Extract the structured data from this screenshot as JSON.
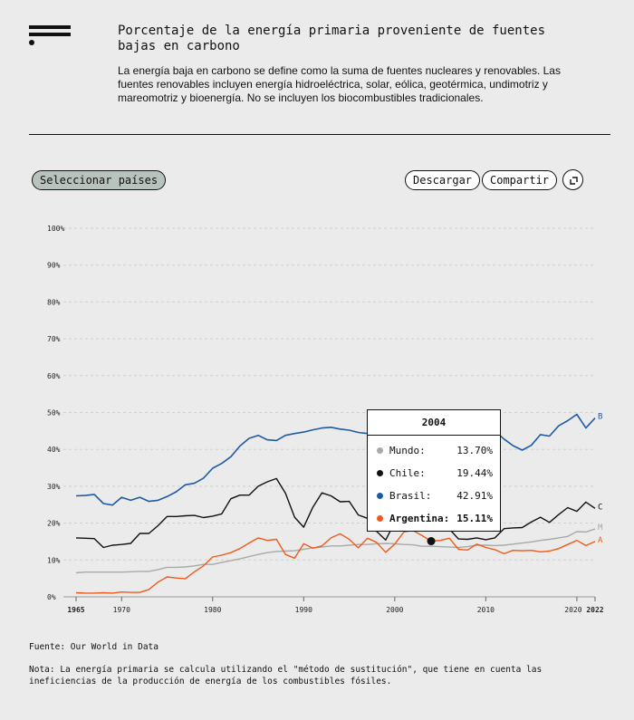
{
  "header": {
    "title": "Porcentaje de la energía primaria proveniente de fuentes bajas en carbono",
    "subtitle": "La energía baja en carbono se define como la suma de fuentes nucleares y renovables. Las fuentes renovables incluyen energía hidroeléctrica, solar, eólica, geotérmica, undimotriz y mareomotriz y bioenergía. No se incluyen los biocombustibles tradicionales."
  },
  "toolbar": {
    "select_label": "Seleccionar países",
    "download_label": "Descargar",
    "share_label": "Compartir",
    "expand_icon": "expand-icon"
  },
  "tooltip": {
    "year": "2004",
    "rows": [
      {
        "name": "Mundo:",
        "value": "13.70%",
        "color": "#a6aba8"
      },
      {
        "name": "Chile:",
        "value": "19.44%",
        "color": "#111111"
      },
      {
        "name": "Brasil:",
        "value": "42.91%",
        "color": "#1f5aa6"
      },
      {
        "name": "Argentina:",
        "value": "15.11%",
        "color": "#f05a1a"
      }
    ]
  },
  "footer": {
    "source": "Fuente: Our World in Data",
    "note": "Nota: La energía primaria se calcula utilizando el \"método de sustitución\", que tiene en cuenta las ineficiencias de la producción de energía de los combustibles fósiles."
  },
  "chart_data": {
    "type": "line",
    "title": "Porcentaje de la energía primaria proveniente de fuentes bajas en carbono",
    "xlim": [
      1965,
      2022
    ],
    "ylim": [
      0,
      100
    ],
    "x_ticks": [
      1965,
      1970,
      1980,
      1990,
      2000,
      2010,
      2020,
      2022
    ],
    "y_ticks": [
      "0%",
      "10%",
      "20%",
      "30%",
      "40%",
      "50%",
      "60%",
      "70%",
      "80%",
      "90%",
      "100%"
    ],
    "grid": true,
    "highlight_year": 2004,
    "x": [
      1965,
      1966,
      1967,
      1968,
      1969,
      1970,
      1971,
      1972,
      1973,
      1974,
      1975,
      1976,
      1977,
      1978,
      1979,
      1980,
      1981,
      1982,
      1983,
      1984,
      1985,
      1986,
      1987,
      1988,
      1989,
      1990,
      1991,
      1992,
      1993,
      1994,
      1995,
      1996,
      1997,
      1998,
      1999,
      2000,
      2001,
      2002,
      2003,
      2004,
      2005,
      2006,
      2007,
      2008,
      2009,
      2010,
      2011,
      2012,
      2013,
      2014,
      2015,
      2016,
      2017,
      2018,
      2019,
      2020,
      2021,
      2022
    ],
    "series": [
      {
        "name": "Mundo",
        "end_label": "M",
        "color": "#a6aba8",
        "width": 1.4,
        "values": [
          6.5,
          6.7,
          6.7,
          6.7,
          6.7,
          6.7,
          6.8,
          6.9,
          6.9,
          7.4,
          8.0,
          8.0,
          8.1,
          8.4,
          8.8,
          8.8,
          9.3,
          9.8,
          10.3,
          10.9,
          11.5,
          12.0,
          12.3,
          12.4,
          12.5,
          12.9,
          13.3,
          13.5,
          13.8,
          13.8,
          14.0,
          14.2,
          14.2,
          14.4,
          14.5,
          14.4,
          14.2,
          14.1,
          13.7,
          13.7,
          13.6,
          13.5,
          13.4,
          13.6,
          14.0,
          14.0,
          13.9,
          14.0,
          14.3,
          14.6,
          14.9,
          15.3,
          15.6,
          16.0,
          16.4,
          17.7,
          17.6,
          18.4
        ]
      },
      {
        "name": "Chile",
        "end_label": "C",
        "color": "#111111",
        "width": 1.4,
        "values": [
          16.0,
          15.9,
          15.8,
          13.4,
          14.0,
          14.2,
          14.5,
          17.2,
          17.2,
          19.3,
          21.8,
          21.8,
          22.0,
          22.1,
          21.5,
          21.9,
          22.5,
          26.6,
          27.6,
          27.6,
          30.0,
          31.2,
          32.1,
          28.1,
          21.6,
          18.9,
          24.3,
          28.2,
          27.4,
          25.8,
          25.9,
          22.2,
          21.3,
          17.8,
          15.4,
          20.2,
          23.5,
          22.4,
          20.2,
          19.4,
          19.0,
          18.4,
          15.7,
          15.6,
          16.0,
          15.5,
          16.0,
          18.5,
          18.7,
          18.8,
          20.3,
          21.6,
          20.2,
          22.3,
          24.2,
          23.2,
          25.7,
          24.0
        ]
      },
      {
        "name": "Brasil",
        "end_label": "B",
        "color": "#1f5aa6",
        "width": 1.6,
        "values": [
          27.4,
          27.5,
          27.8,
          25.3,
          24.9,
          27.0,
          26.2,
          27.0,
          25.9,
          26.2,
          27.2,
          28.5,
          30.4,
          30.8,
          32.2,
          34.9,
          36.2,
          38.0,
          40.9,
          43.0,
          43.8,
          42.6,
          42.4,
          43.8,
          44.3,
          44.7,
          45.3,
          45.8,
          46.0,
          45.5,
          45.2,
          44.6,
          44.3,
          44.0,
          43.6,
          43.2,
          42.8,
          42.9,
          43.6,
          42.9,
          43.0,
          43.3,
          44.0,
          44.1,
          45.5,
          44.5,
          45.0,
          42.8,
          41.0,
          39.8,
          41.1,
          44.0,
          43.6,
          46.4,
          47.8,
          49.5,
          45.8,
          48.5
        ]
      },
      {
        "name": "Argentina",
        "end_label": "A",
        "color": "#f05a1a",
        "width": 1.4,
        "values": [
          1.1,
          1.0,
          1.0,
          1.1,
          1.0,
          1.3,
          1.2,
          1.2,
          2.0,
          4.0,
          5.4,
          5.1,
          4.9,
          6.8,
          8.4,
          10.8,
          11.3,
          12.0,
          13.1,
          14.6,
          16.0,
          15.3,
          15.6,
          11.5,
          10.5,
          14.4,
          13.2,
          13.8,
          16.0,
          17.1,
          15.6,
          13.3,
          15.9,
          14.8,
          12.1,
          14.3,
          17.6,
          18.0,
          16.6,
          15.1,
          15.3,
          15.9,
          12.9,
          12.7,
          14.3,
          13.4,
          12.8,
          11.7,
          12.6,
          12.5,
          12.6,
          12.2,
          12.4,
          13.1,
          14.2,
          15.3,
          13.9,
          15.0
        ]
      }
    ]
  }
}
